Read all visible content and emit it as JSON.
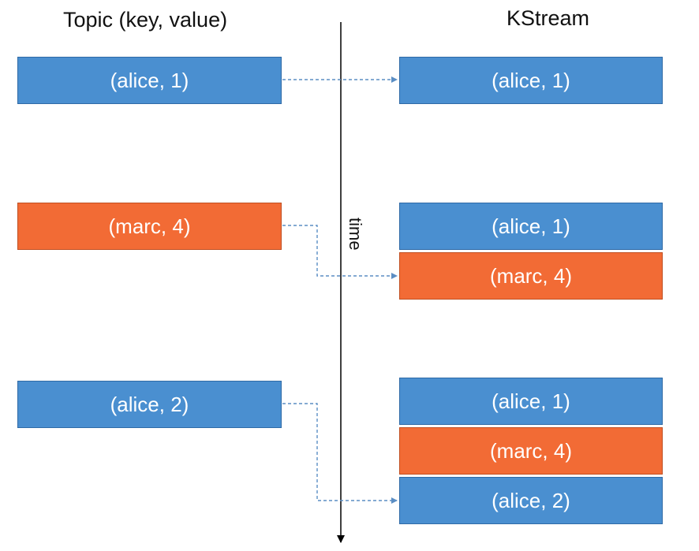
{
  "headings": {
    "topic": "Topic (key, value)",
    "kstream": "KStream"
  },
  "time_label": "time",
  "colors": {
    "blue": "#4a8fd0",
    "orange": "#f26b35",
    "arrow": "#5b8ec4",
    "timeline": "#000000"
  },
  "topic_records": [
    {
      "label": "(alice, 1)",
      "color": "blue"
    },
    {
      "label": "(marc, 4)",
      "color": "orange"
    },
    {
      "label": "(alice, 2)",
      "color": "blue"
    }
  ],
  "kstream_snapshots": [
    [
      {
        "label": "(alice, 1)",
        "color": "blue"
      }
    ],
    [
      {
        "label": "(alice, 1)",
        "color": "blue"
      },
      {
        "label": "(marc, 4)",
        "color": "orange"
      }
    ],
    [
      {
        "label": "(alice, 1)",
        "color": "blue"
      },
      {
        "label": "(marc, 4)",
        "color": "orange"
      },
      {
        "label": "(alice, 2)",
        "color": "blue"
      }
    ]
  ]
}
